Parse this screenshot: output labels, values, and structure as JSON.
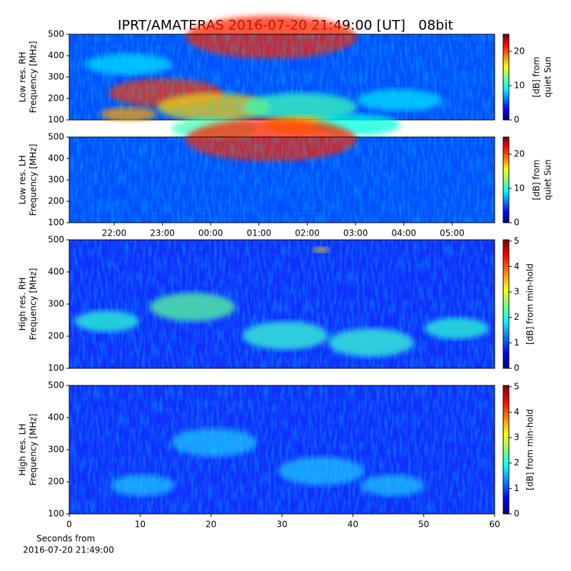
{
  "title": "IPRT/AMATERAS 2016-07-20 21:49:00 [UT]   08bit",
  "chart_data": [
    {
      "type": "heatmap",
      "ylabel": [
        "Low res. RH",
        "Frequency [MHz]"
      ],
      "ylim": [
        100,
        500
      ],
      "yticks": [
        100,
        200,
        300,
        400,
        500
      ],
      "xlim": [
        21.07,
        29.88
      ],
      "colorbar_label": [
        "[dB] from",
        "quiet Sun"
      ],
      "clim": [
        0,
        25
      ],
      "cticks": [
        0,
        10,
        20
      ]
    },
    {
      "type": "heatmap",
      "ylabel": [
        "Low res. LH",
        "Frequency [MHz]"
      ],
      "ylim": [
        100,
        500
      ],
      "yticks": [
        100,
        200,
        300,
        400,
        500
      ],
      "xlim": [
        21.07,
        29.88
      ],
      "xticks": [
        {
          "value": 22,
          "label": "22:00"
        },
        {
          "value": 23,
          "label": "23:00"
        },
        {
          "value": 24,
          "label": "00:00"
        },
        {
          "value": 25,
          "label": "01:00"
        },
        {
          "value": 26,
          "label": "02:00"
        },
        {
          "value": 27,
          "label": "03:00"
        },
        {
          "value": 28,
          "label": "04:00"
        },
        {
          "value": 29,
          "label": "05:00"
        }
      ],
      "colorbar_label": [
        "[dB] from",
        "quiet Sun"
      ],
      "clim": [
        0,
        25
      ],
      "cticks": [
        0,
        10,
        20
      ]
    },
    {
      "type": "heatmap",
      "ylabel": [
        "High res. RH",
        "Frequency [MHz]"
      ],
      "ylim": [
        100,
        500
      ],
      "yticks": [
        100,
        200,
        300,
        400,
        500
      ],
      "xlim": [
        0,
        60
      ],
      "colorbar_label": [
        "[dB] from min-hold"
      ],
      "clim": [
        0,
        5.05
      ],
      "cticks": [
        0,
        1,
        2,
        3,
        4,
        5
      ]
    },
    {
      "type": "heatmap",
      "ylabel": [
        "High res. LH",
        "Frequency [MHz]"
      ],
      "ylim": [
        100,
        500
      ],
      "yticks": [
        100,
        200,
        300,
        400,
        500
      ],
      "xlim": [
        0,
        60
      ],
      "xticks": [
        0,
        10,
        20,
        30,
        40,
        50,
        60
      ],
      "xlabel": [
        "Seconds from",
        "2016-07-20 21:49:00"
      ],
      "colorbar_label": [
        "[dB] from min-hold"
      ],
      "clim": [
        0,
        5.05
      ],
      "cticks": [
        0,
        1,
        2,
        3,
        4,
        5
      ]
    }
  ]
}
